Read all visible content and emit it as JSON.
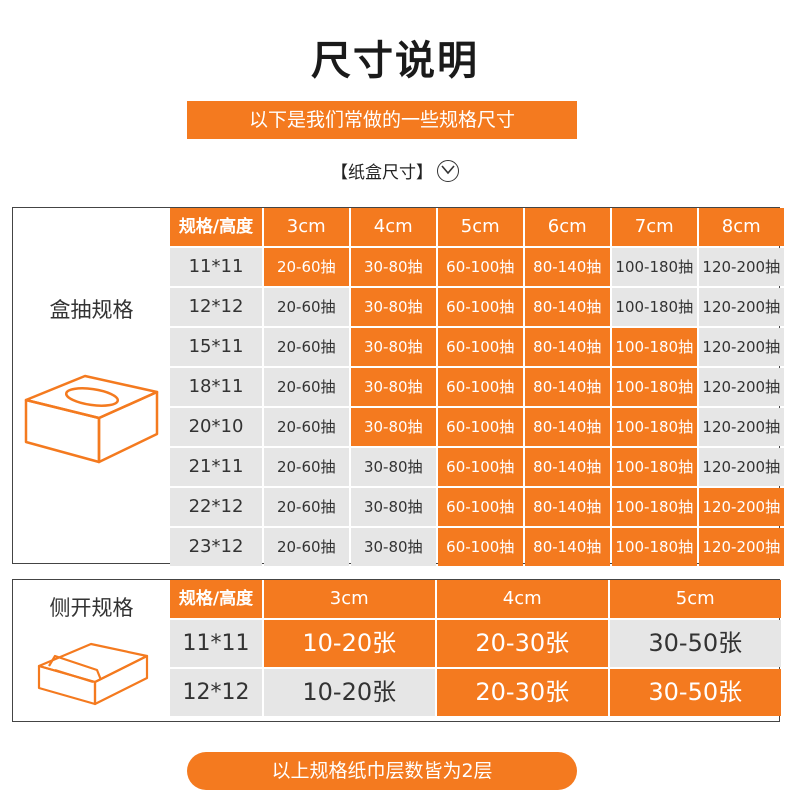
{
  "title": "尺寸说明",
  "banner": "以下是我们常做的一些规格尺寸",
  "subtitle": "【纸盒尺寸】",
  "table1": {
    "label": "盒抽规格",
    "corner": "规格/高度",
    "columns": [
      "3cm",
      "4cm",
      "5cm",
      "6cm",
      "7cm",
      "8cm"
    ],
    "rows": [
      {
        "size": "11*11",
        "cells": [
          "20-60抽",
          "30-80抽",
          "60-100抽",
          "80-140抽",
          "100-180抽",
          "120-200抽"
        ],
        "highlight": [
          true,
          true,
          true,
          true,
          false,
          false
        ]
      },
      {
        "size": "12*12",
        "cells": [
          "20-60抽",
          "30-80抽",
          "60-100抽",
          "80-140抽",
          "100-180抽",
          "120-200抽"
        ],
        "highlight": [
          false,
          true,
          true,
          true,
          false,
          false
        ]
      },
      {
        "size": "15*11",
        "cells": [
          "20-60抽",
          "30-80抽",
          "60-100抽",
          "80-140抽",
          "100-180抽",
          "120-200抽"
        ],
        "highlight": [
          false,
          true,
          true,
          true,
          true,
          false
        ]
      },
      {
        "size": "18*11",
        "cells": [
          "20-60抽",
          "30-80抽",
          "60-100抽",
          "80-140抽",
          "100-180抽",
          "120-200抽"
        ],
        "highlight": [
          false,
          true,
          true,
          true,
          true,
          false
        ]
      },
      {
        "size": "20*10",
        "cells": [
          "20-60抽",
          "30-80抽",
          "60-100抽",
          "80-140抽",
          "100-180抽",
          "120-200抽"
        ],
        "highlight": [
          false,
          true,
          true,
          true,
          true,
          false
        ]
      },
      {
        "size": "21*11",
        "cells": [
          "20-60抽",
          "30-80抽",
          "60-100抽",
          "80-140抽",
          "100-180抽",
          "120-200抽"
        ],
        "highlight": [
          false,
          false,
          true,
          true,
          true,
          false
        ]
      },
      {
        "size": "22*12",
        "cells": [
          "20-60抽",
          "30-80抽",
          "60-100抽",
          "80-140抽",
          "100-180抽",
          "120-200抽"
        ],
        "highlight": [
          false,
          false,
          true,
          true,
          true,
          true
        ]
      },
      {
        "size": "23*12",
        "cells": [
          "20-60抽",
          "30-80抽",
          "60-100抽",
          "80-140抽",
          "100-180抽",
          "120-200抽"
        ],
        "highlight": [
          false,
          false,
          true,
          true,
          true,
          true
        ]
      }
    ]
  },
  "table2": {
    "label": "侧开规格",
    "corner": "规格/高度",
    "columns": [
      "3cm",
      "4cm",
      "5cm"
    ],
    "rows": [
      {
        "size": "11*11",
        "cells": [
          "10-20张",
          "20-30张",
          "30-50张"
        ],
        "highlight": [
          true,
          true,
          false
        ]
      },
      {
        "size": "12*12",
        "cells": [
          "10-20张",
          "20-30张",
          "30-50张"
        ],
        "highlight": [
          false,
          true,
          true
        ]
      }
    ]
  },
  "footer": "以上规格纸巾层数皆为2层",
  "colors": {
    "accent": "#f47a1f",
    "grey": "#e6e6e6",
    "text": "#333333"
  },
  "icons": {
    "subtitle": "chevron-down-circle-icon",
    "table1": "tissue-box-icon",
    "table2": "side-open-box-icon"
  }
}
